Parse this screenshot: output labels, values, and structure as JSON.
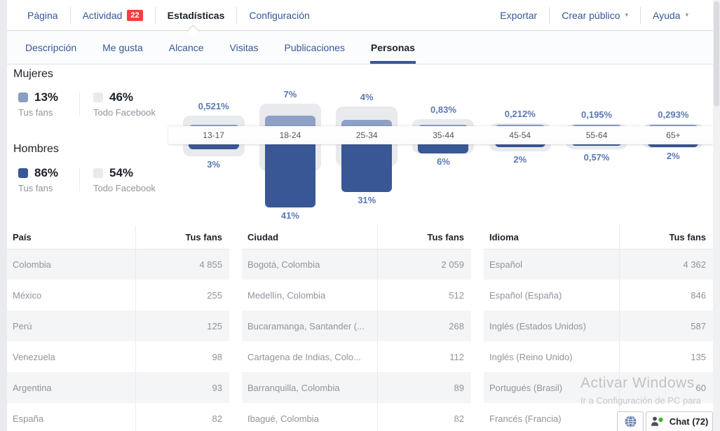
{
  "nav": {
    "items": [
      {
        "key": "pagina",
        "label": "Página"
      },
      {
        "key": "actividad",
        "label": "Actividad",
        "badge": "22"
      },
      {
        "key": "estadisticas",
        "label": "Estadísticas",
        "active": true
      },
      {
        "key": "configuracion",
        "label": "Configuración"
      }
    ],
    "actions": [
      {
        "key": "exportar",
        "label": "Exportar"
      },
      {
        "key": "crear-publico",
        "label": "Crear público",
        "dropdown": true
      },
      {
        "key": "ayuda",
        "label": "Ayuda",
        "dropdown": true
      }
    ],
    "badge_color": "#fa3e3e",
    "link_color": "#365899"
  },
  "tabs": {
    "items": [
      {
        "key": "descripcion",
        "label": "Descripción"
      },
      {
        "key": "me-gusta",
        "label": "Me gusta"
      },
      {
        "key": "alcance",
        "label": "Alcance"
      },
      {
        "key": "visitas",
        "label": "Visitas"
      },
      {
        "key": "publicaciones",
        "label": "Publicaciones"
      },
      {
        "key": "personas",
        "label": "Personas",
        "active": true
      }
    ],
    "active_underline_color": "#3a5795"
  },
  "demographics": {
    "women": {
      "title": "Mujeres",
      "fans": {
        "pct": "13%",
        "label": "Tus fans",
        "color": "#8b9dc3"
      },
      "all": {
        "pct": "46%",
        "label": "Todo Facebook",
        "color": "#e9eaed"
      }
    },
    "men": {
      "title": "Hombres",
      "fans": {
        "pct": "86%",
        "label": "Tus fans",
        "color": "#3a5795"
      },
      "all": {
        "pct": "54%",
        "label": "Todo Facebook",
        "color": "#e9eaed"
      }
    }
  },
  "chart_data": {
    "type": "bar",
    "title": "",
    "unit": "%",
    "categories": [
      "13-17",
      "18-24",
      "25-34",
      "35-44",
      "45-54",
      "55-64",
      "65+"
    ],
    "legend": [
      "Tus fans",
      "Todo Facebook"
    ],
    "series": [
      {
        "name": "Mujeres - Tus fans",
        "values": [
          0.521,
          7,
          4,
          0.83,
          0.212,
          0.195,
          0.293
        ],
        "labels": [
          "0,521%",
          "7%",
          "4%",
          "0,83%",
          "0,212%",
          "0,195%",
          "0,293%"
        ],
        "color": "#8fa0c7"
      },
      {
        "name": "Hombres - Tus fans",
        "values": [
          3,
          41,
          31,
          6,
          2,
          0.57,
          2
        ],
        "labels": [
          "3%",
          "41%",
          "31%",
          "6%",
          "2%",
          "0,57%",
          "2%"
        ],
        "color": "#3a5795"
      },
      {
        "name": "Todo Facebook - Mujeres (estimado de barras grises)",
        "values": [
          6.8,
          14.5,
          12.7,
          4.5,
          1.8,
          1.4,
          1.4
        ],
        "color": "#e9eaed"
      },
      {
        "name": "Todo Facebook - Hombres (estimado de barras grises)",
        "values": [
          7.6,
          17.5,
          14,
          6,
          4.5,
          3,
          2.2
        ],
        "color": "#e9eaed"
      }
    ]
  },
  "tables": [
    {
      "key": "pais",
      "title": "País",
      "value_header": "Tus fans",
      "rows": [
        {
          "name": "Colombia",
          "value": "4 855"
        },
        {
          "name": "México",
          "value": "255"
        },
        {
          "name": "Perú",
          "value": "125"
        },
        {
          "name": "Venezuela",
          "value": "98"
        },
        {
          "name": "Argentina",
          "value": "93"
        },
        {
          "name": "España",
          "value": "82"
        }
      ]
    },
    {
      "key": "ciudad",
      "title": "Ciudad",
      "value_header": "Tus fans",
      "rows": [
        {
          "name": "Bogotá, Colombia",
          "value": "2 059"
        },
        {
          "name": "Medellín, Colombia",
          "value": "512"
        },
        {
          "name": "Bucaramanga, Santander (...",
          "value": "268"
        },
        {
          "name": "Cartagena de Indias, Colo...",
          "value": "112"
        },
        {
          "name": "Barranquilla, Colombia",
          "value": "89"
        },
        {
          "name": "Ibagué, Colombia",
          "value": "82"
        }
      ]
    },
    {
      "key": "idioma",
      "title": "Idioma",
      "value_header": "Tus fans",
      "rows": [
        {
          "name": "Español",
          "value": "4 362"
        },
        {
          "name": "Español (España)",
          "value": "846"
        },
        {
          "name": "Inglés (Estados Unidos)",
          "value": "587"
        },
        {
          "name": "Inglés (Reino Unido)",
          "value": "135"
        },
        {
          "name": "Portugués (Brasil)",
          "value": "60"
        },
        {
          "name": "Francés (Francia)",
          "value": ""
        }
      ]
    }
  ],
  "watermark": {
    "title": "Activar Windows",
    "subtitle": "Ir a Configuración de PC para"
  },
  "chat": {
    "label": "Chat (72)",
    "presence_color": "#42b72a"
  }
}
